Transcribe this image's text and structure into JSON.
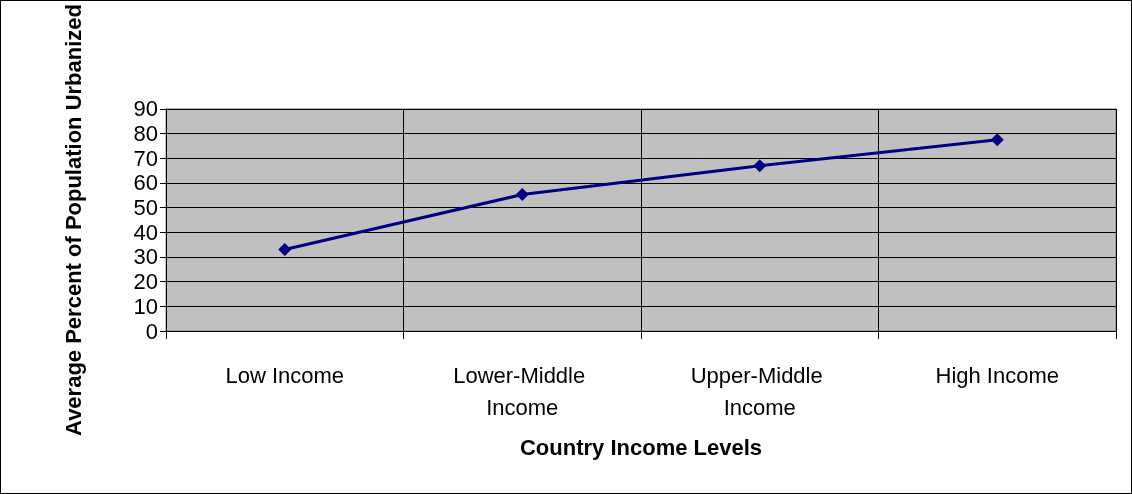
{
  "chart_data": {
    "type": "line",
    "xlabel": "Country Income Levels",
    "ylabel": "Average Percent of Population Urbanized",
    "categories": [
      "Low Income",
      "Lower-Middle Income",
      "Upper-Middle Income",
      "High Income"
    ],
    "series": [
      {
        "color": "#000080",
        "values": [
          33,
          55.3,
          67,
          77.5
        ]
      }
    ],
    "ylim": [
      0,
      90
    ],
    "yticks": [
      0,
      10,
      20,
      30,
      40,
      50,
      60,
      70,
      80,
      90
    ],
    "grid": true,
    "marker": "diamond",
    "line_style": "solid"
  }
}
